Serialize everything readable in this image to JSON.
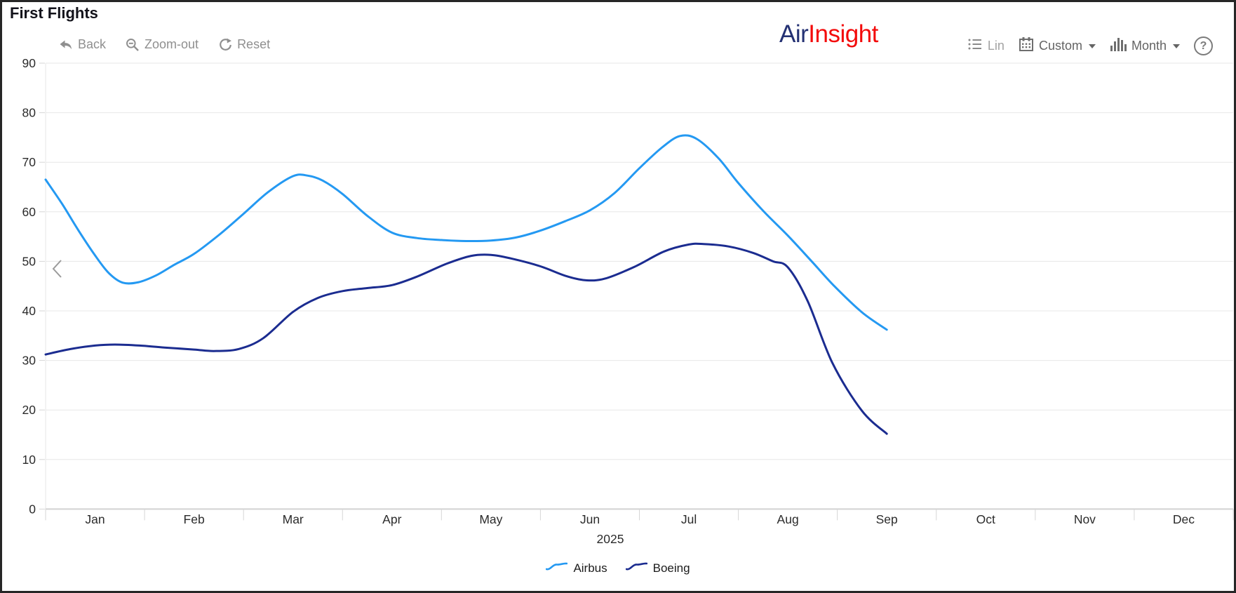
{
  "app": {
    "title": "First Flights"
  },
  "toolbar": {
    "back": "Back",
    "zoom_out": "Zoom-out",
    "reset": "Reset"
  },
  "logo": {
    "part1": "Air",
    "part2": "Insight",
    "part1_color": "#243173",
    "part2_color": "#f30b0b"
  },
  "view_controls": {
    "lin": "Lin",
    "custom": "Custom",
    "month": "Month",
    "help": "?"
  },
  "chart_data": {
    "type": "line",
    "smooth": true,
    "title": "First Flights",
    "x_axis": {
      "categories": [
        "Jan",
        "Feb",
        "Mar",
        "Apr",
        "May",
        "Jun",
        "Jul",
        "Aug",
        "Sep",
        "Oct",
        "Nov",
        "Dec"
      ],
      "year_label": "2025"
    },
    "y_axis": {
      "min": 0,
      "max": 90,
      "step": 10
    },
    "grid": "horizontal",
    "legend_position": "bottom",
    "series": [
      {
        "name": "Airbus",
        "color": "#2499F2",
        "months": [
          "Jan",
          "Feb",
          "Mar",
          "Apr",
          "May",
          "Jun",
          "Jul",
          "Aug",
          "Sep"
        ],
        "values": [
          51,
          52,
          67,
          55,
          54,
          60,
          75,
          55,
          36
        ],
        "curve_points": [
          [
            -0.5,
            66.5
          ],
          [
            -0.33,
            61.5
          ],
          [
            -0.17,
            56.3
          ],
          [
            0,
            51.2
          ],
          [
            0.14,
            47.6
          ],
          [
            0.28,
            45.7
          ],
          [
            0.44,
            45.8
          ],
          [
            0.62,
            47.2
          ],
          [
            0.8,
            49.3
          ],
          [
            1,
            51.5
          ],
          [
            1.25,
            55.3
          ],
          [
            1.5,
            59.6
          ],
          [
            1.75,
            64
          ],
          [
            2,
            67.2
          ],
          [
            2.15,
            67.3
          ],
          [
            2.3,
            66.3
          ],
          [
            2.5,
            63.6
          ],
          [
            2.75,
            59.2
          ],
          [
            3,
            55.8
          ],
          [
            3.25,
            54.7
          ],
          [
            3.5,
            54.3
          ],
          [
            3.75,
            54.1
          ],
          [
            4,
            54.2
          ],
          [
            4.25,
            54.8
          ],
          [
            4.5,
            56.2
          ],
          [
            4.75,
            58.1
          ],
          [
            5,
            60.3
          ],
          [
            5.25,
            63.8
          ],
          [
            5.5,
            68.8
          ],
          [
            5.73,
            73
          ],
          [
            5.91,
            75.3
          ],
          [
            6.08,
            74.7
          ],
          [
            6.3,
            70.8
          ],
          [
            6.5,
            65.8
          ],
          [
            6.75,
            60.2
          ],
          [
            7,
            55.2
          ],
          [
            7.25,
            49.8
          ],
          [
            7.47,
            45
          ],
          [
            7.75,
            39.7
          ],
          [
            8,
            36.2
          ]
        ]
      },
      {
        "name": "Boeing",
        "color": "#1B2C90",
        "months": [
          "Jan",
          "Feb",
          "Mar",
          "Apr",
          "May",
          "Jun",
          "Jul",
          "Aug",
          "Sep"
        ],
        "values": [
          33,
          32,
          40,
          45,
          51,
          46,
          53,
          49,
          15
        ],
        "curve_points": [
          [
            -0.5,
            31.2
          ],
          [
            -0.25,
            32.3
          ],
          [
            0,
            33
          ],
          [
            0.2,
            33.2
          ],
          [
            0.45,
            33
          ],
          [
            0.7,
            32.6
          ],
          [
            1,
            32.2
          ],
          [
            1.2,
            31.9
          ],
          [
            1.45,
            32.3
          ],
          [
            1.7,
            34.5
          ],
          [
            2,
            39.8
          ],
          [
            2.25,
            42.6
          ],
          [
            2.5,
            44
          ],
          [
            2.75,
            44.6
          ],
          [
            3,
            45.2
          ],
          [
            3.25,
            46.9
          ],
          [
            3.55,
            49.5
          ],
          [
            3.8,
            51.1
          ],
          [
            4,
            51.3
          ],
          [
            4.2,
            50.6
          ],
          [
            4.5,
            49
          ],
          [
            4.75,
            47.1
          ],
          [
            4.95,
            46.2
          ],
          [
            5.15,
            46.5
          ],
          [
            5.45,
            48.9
          ],
          [
            5.75,
            52
          ],
          [
            6,
            53.4
          ],
          [
            6.15,
            53.5
          ],
          [
            6.4,
            53
          ],
          [
            6.65,
            51.7
          ],
          [
            6.85,
            50
          ],
          [
            7,
            48.8
          ],
          [
            7.2,
            42
          ],
          [
            7.45,
            29.5
          ],
          [
            7.75,
            19.8
          ],
          [
            8,
            15.2
          ]
        ]
      }
    ]
  },
  "pan": {
    "direction": "left"
  }
}
